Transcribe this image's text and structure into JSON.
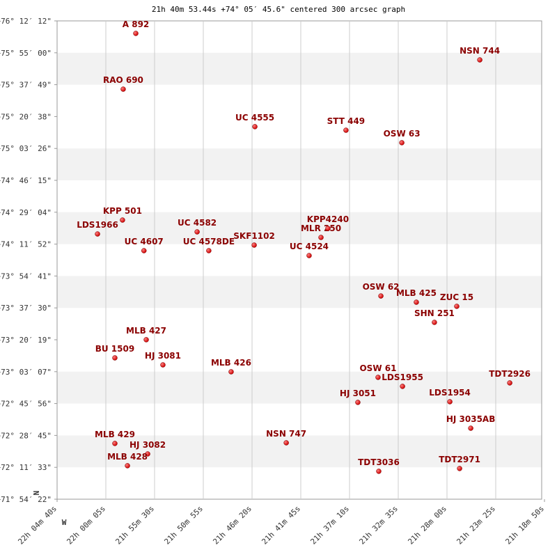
{
  "chart_data": {
    "type": "scatter",
    "title": "21h 40m 53.44s +74° 05′ 45.6\" centered 300 arcsec graph",
    "north_label": "N",
    "west_label": "W",
    "color": "#cc0000",
    "label_color": "#8b0000",
    "grid": true,
    "xlim": [
      79480,
      76730
    ],
    "xticks": [
      {
        "value": 79480,
        "label": "22h 04m 40s"
      },
      {
        "value": 79205,
        "label": "22h 00m 05s"
      },
      {
        "value": 78930,
        "label": "21h 55m 30s"
      },
      {
        "value": 78655,
        "label": "21h 50m 55s"
      },
      {
        "value": 78380,
        "label": "21h 46m 20s"
      },
      {
        "value": 78105,
        "label": "21h 41m 45s"
      },
      {
        "value": 77830,
        "label": "21h 37m 10s"
      },
      {
        "value": 77555,
        "label": "21h 32m 35s"
      },
      {
        "value": 77280,
        "label": "21h 28m 00s"
      },
      {
        "value": 77005,
        "label": "21h 23m 25s"
      },
      {
        "value": 76730,
        "label": "21h 18m 50s"
      }
    ],
    "ylim": [
      71.9061,
      76.2033
    ],
    "yticks": [
      {
        "value": 76.2033,
        "label": "+76° 12′ 12\""
      },
      {
        "value": 75.9167,
        "label": "+75° 55′ 00\""
      },
      {
        "value": 75.6303,
        "label": "+75° 37′ 49\""
      },
      {
        "value": 75.3439,
        "label": "+75° 20′ 38\""
      },
      {
        "value": 75.0572,
        "label": "+75° 03′ 26\""
      },
      {
        "value": 74.7708,
        "label": "+74° 46′ 15\""
      },
      {
        "value": 74.4844,
        "label": "+74° 29′ 04\""
      },
      {
        "value": 74.1978,
        "label": "+74° 11′ 52\""
      },
      {
        "value": 73.9114,
        "label": "+73° 54′ 41\""
      },
      {
        "value": 73.625,
        "label": "+73° 37′ 30\""
      },
      {
        "value": 73.3386,
        "label": "+73° 20′ 19\""
      },
      {
        "value": 73.0519,
        "label": "+73° 03′ 07\""
      },
      {
        "value": 72.7656,
        "label": "+72° 45′ 56\""
      },
      {
        "value": 72.4792,
        "label": "+72° 28′ 45\""
      },
      {
        "value": 72.1925,
        "label": "+72° 11′ 33\""
      },
      {
        "value": 71.9061,
        "label": "+71° 54′ 22\""
      }
    ],
    "labels": [
      "A 892",
      "NSN 744",
      "RAO 690",
      "UC 4555",
      "STT 449",
      "OSW 63",
      "KPP 501",
      "LDS1966",
      "MLR 250",
      "KPP4240",
      "UC 4582",
      "SKF1102",
      "UC 4578DE",
      "UC 4524",
      "UC 4607",
      "OSW 62",
      "MLB 425",
      "ZUC 15",
      "SHN 251",
      "MLB 427",
      "BU 1509",
      "HJ 3081",
      "MLB 426",
      "OSW 61",
      "LDS1955",
      "TDT2926",
      "HJ 3051",
      "LDS1954",
      "HJ 3035AB",
      "MLB 429",
      "HJ 3082",
      "NSN 747",
      "MLB 428",
      "TDT3036",
      "TDT2971"
    ],
    "x": [
      79036,
      77095,
      79107,
      78364,
      77850,
      77535,
      79111,
      79252,
      77991,
      77952,
      78690,
      78368,
      78624,
      78058,
      78990,
      77653,
      77453,
      77225,
      77351,
      78977,
      79154,
      78883,
      78498,
      77669,
      77531,
      76926,
      77783,
      77264,
      77146,
      79154,
      78969,
      78187,
      79083,
      77665,
      77209
    ],
    "y": [
      76.091,
      75.853,
      75.59,
      75.253,
      75.221,
      75.109,
      74.414,
      74.289,
      74.258,
      74.339,
      74.308,
      74.189,
      74.139,
      74.095,
      74.139,
      73.732,
      73.676,
      73.639,
      73.495,
      73.339,
      73.176,
      73.113,
      73.051,
      73.001,
      72.92,
      72.951,
      72.776,
      72.782,
      72.544,
      72.407,
      72.313,
      72.413,
      72.207,
      72.157,
      72.182
    ]
  }
}
